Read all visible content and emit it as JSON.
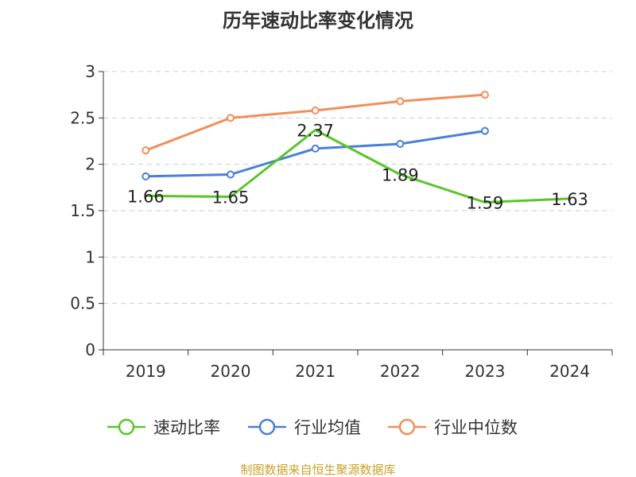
{
  "chart_data": {
    "type": "line",
    "title": "历年速动比率变化情况",
    "categories": [
      "2019",
      "2020",
      "2021",
      "2022",
      "2023",
      "2024"
    ],
    "ylim": [
      0,
      3
    ],
    "yticks": [
      0,
      0.5,
      1,
      1.5,
      2,
      2.5,
      3
    ],
    "ytick_labels": [
      "0",
      "0.5",
      "1",
      "1.5",
      "2",
      "2.5",
      "3"
    ],
    "grid": "horizontal-dashed",
    "legend_position": "bottom",
    "series": [
      {
        "name": "速动比率",
        "color": "#5bc42a",
        "marker": "none",
        "values": [
          1.66,
          1.65,
          2.37,
          1.89,
          1.59,
          1.63
        ],
        "data_labels": [
          "1.66",
          "1.65",
          "2.37",
          "1.89",
          "1.59",
          "1.63"
        ]
      },
      {
        "name": "行业均值",
        "color": "#4a7fd8",
        "marker": "hollow-circle",
        "values": [
          1.87,
          1.89,
          2.17,
          2.22,
          2.36,
          null
        ]
      },
      {
        "name": "行业中位数",
        "color": "#f28e5b",
        "marker": "hollow-circle",
        "values": [
          2.15,
          2.5,
          2.58,
          2.68,
          2.75,
          null
        ]
      }
    ]
  },
  "source_note": "制图数据来自恒生聚源数据库"
}
